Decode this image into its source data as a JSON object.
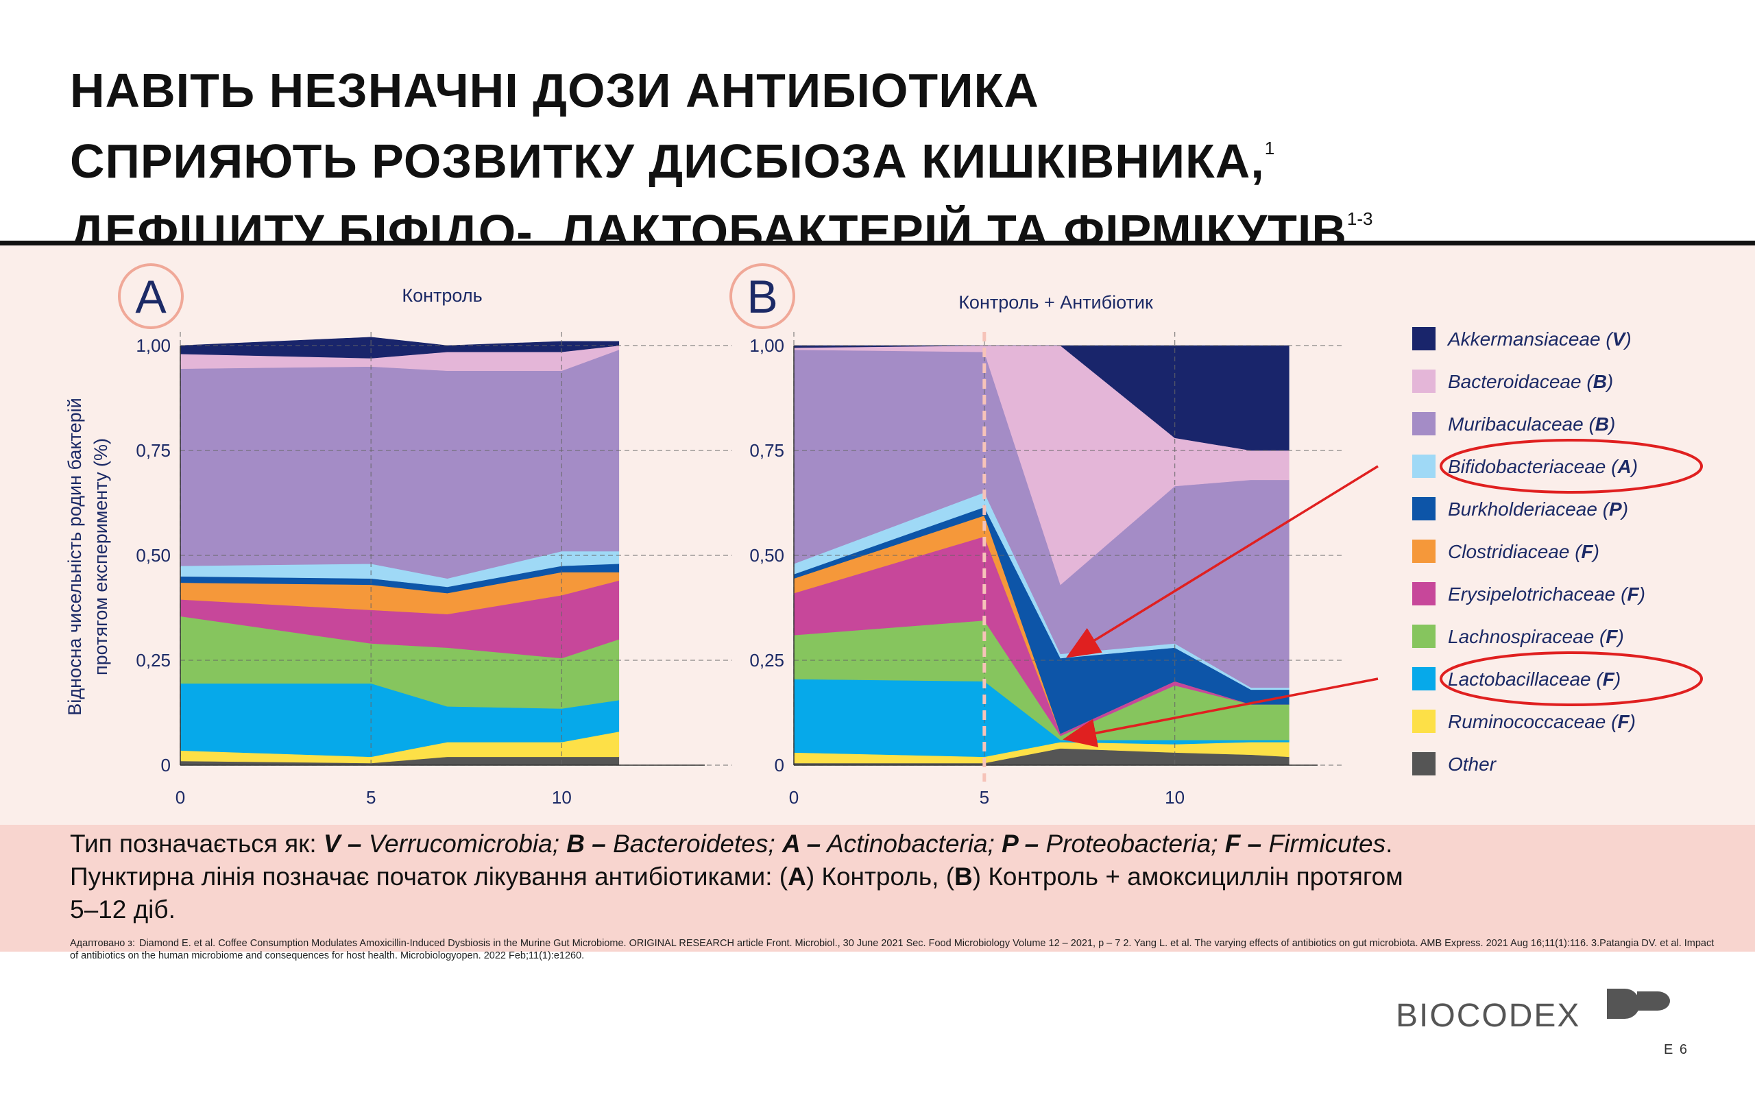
{
  "title": {
    "line1": "НАВІТЬ НЕЗНАЧНІ ДОЗИ АНТИБІОТИКА",
    "line2": "СПРИЯЮТЬ РОЗВИТКУ ДИСБІОЗА КИШКІВНИКА,",
    "line2_sup": "1",
    "line3": "ДЕФІЦИТУ БІФІДО-, ЛАКТОБАКТЕРІЙ ТА ФІРМІКУТІВ",
    "line3_sup": "1-3"
  },
  "ylabel_line1": "Відносна чисельність родин бактерій",
  "ylabel_line2": "протягом експерименту (%)",
  "colors": {
    "accent_circle": "#f0a898",
    "annotation": "#e02020",
    "panel_bg": "#fbeeea",
    "caption_bg": "#f8d5cf"
  },
  "chart_data": [
    {
      "type": "area",
      "stacked": true,
      "panel_label": "A",
      "title": "Контроль",
      "x": [
        0,
        5,
        7,
        10,
        11.5
      ],
      "xticks": [
        "0",
        "5",
        "10"
      ],
      "yticks": [
        "0",
        "0,25",
        "0,50",
        "0,75",
        "1,00"
      ],
      "ylim": [
        0,
        1
      ],
      "grid": true,
      "series": [
        {
          "name": "Other",
          "color": "#555555",
          "values": [
            0.01,
            0.005,
            0.02,
            0.02,
            0.02
          ]
        },
        {
          "name": "Ruminococcaceae",
          "color": "#fde047",
          "values": [
            0.025,
            0.015,
            0.035,
            0.035,
            0.06
          ]
        },
        {
          "name": "Lactobacillaceae",
          "color": "#06a9ea",
          "values": [
            0.16,
            0.175,
            0.085,
            0.08,
            0.075
          ]
        },
        {
          "name": "Lachnospiraceae",
          "color": "#86c55e",
          "values": [
            0.16,
            0.095,
            0.14,
            0.12,
            0.145
          ]
        },
        {
          "name": "Erysipelotrichaceae",
          "color": "#c7479a",
          "values": [
            0.04,
            0.08,
            0.08,
            0.15,
            0.14
          ]
        },
        {
          "name": "Clostridiaceae",
          "color": "#f5983a",
          "values": [
            0.04,
            0.06,
            0.05,
            0.055,
            0.02
          ]
        },
        {
          "name": "Burkholderiaceae",
          "color": "#0d55a8",
          "values": [
            0.015,
            0.015,
            0.015,
            0.015,
            0.02
          ]
        },
        {
          "name": "Bifidobacteriaceae",
          "color": "#9fd9f6",
          "values": [
            0.025,
            0.035,
            0.02,
            0.035,
            0.03
          ]
        },
        {
          "name": "Muribaculaceae",
          "color": "#a48cc6",
          "values": [
            0.47,
            0.47,
            0.495,
            0.43,
            0.48
          ]
        },
        {
          "name": "Bacteroidaceae",
          "color": "#e4b6d8",
          "values": [
            0.035,
            0.02,
            0.045,
            0.045,
            0.01
          ]
        },
        {
          "name": "Akkermansiaceae",
          "color": "#19256b",
          "values": [
            0.02,
            0.05,
            0.015,
            0.025,
            0.01
          ]
        }
      ]
    },
    {
      "type": "area",
      "stacked": true,
      "panel_label": "B",
      "title": "Контроль + Антибіотик",
      "x": [
        0,
        5,
        7,
        10,
        12,
        13
      ],
      "xticks": [
        "0",
        "5",
        "10"
      ],
      "yticks": [
        "0",
        "0,25",
        "0,50",
        "0,75",
        "1,00"
      ],
      "ylim": [
        0,
        1
      ],
      "grid": true,
      "treatment_start_x": 5,
      "series": [
        {
          "name": "Other",
          "color": "#555555",
          "values": [
            0.005,
            0.005,
            0.04,
            0.03,
            0.025,
            0.02
          ]
        },
        {
          "name": "Ruminococcaceae",
          "color": "#fde047",
          "values": [
            0.025,
            0.015,
            0.015,
            0.02,
            0.03,
            0.035
          ]
        },
        {
          "name": "Lactobacillaceae",
          "color": "#06a9ea",
          "values": [
            0.175,
            0.18,
            0.005,
            0.01,
            0.005,
            0.005
          ]
        },
        {
          "name": "Lachnospiraceae",
          "color": "#86c55e",
          "values": [
            0.105,
            0.145,
            0.01,
            0.13,
            0.085,
            0.085
          ]
        },
        {
          "name": "Erysipelotrichaceae",
          "color": "#c7479a",
          "values": [
            0.1,
            0.2,
            0.005,
            0.01,
            0.0,
            0.0
          ]
        },
        {
          "name": "Clostridiaceae",
          "color": "#f5983a",
          "values": [
            0.035,
            0.05,
            0.0,
            0.0,
            0.0,
            0.0
          ]
        },
        {
          "name": "Burkholderiaceae",
          "color": "#0d55a8",
          "values": [
            0.01,
            0.02,
            0.18,
            0.08,
            0.035,
            0.035
          ]
        },
        {
          "name": "Bifidobacteriaceae",
          "color": "#9fd9f6",
          "values": [
            0.025,
            0.035,
            0.01,
            0.01,
            0.005,
            0.005
          ]
        },
        {
          "name": "Muribaculaceae",
          "color": "#a48cc6",
          "values": [
            0.51,
            0.335,
            0.165,
            0.375,
            0.495,
            0.495
          ]
        },
        {
          "name": "Bacteroidaceae",
          "color": "#e4b6d8",
          "values": [
            0.005,
            0.015,
            0.57,
            0.115,
            0.07,
            0.07
          ]
        },
        {
          "name": "Akkermansiaceae",
          "color": "#19256b",
          "values": [
            0.005,
            0.0,
            0.0,
            0.22,
            0.25,
            0.25
          ]
        }
      ]
    }
  ],
  "legend": [
    {
      "name": "Akkermansiaceae",
      "suffix": " (",
      "phylum": "V",
      "close": ")",
      "color": "#19256b"
    },
    {
      "name": "Bacteroidaceae",
      "suffix": " (",
      "phylum": "B",
      "close": ")",
      "color": "#e4b6d8"
    },
    {
      "name": "Muribaculaceae",
      "suffix": " (",
      "phylum": "B",
      "close": ")",
      "color": "#a48cc6"
    },
    {
      "name": "Bifidobacteriaceae",
      "suffix": " (",
      "phylum": "A",
      "close": ")",
      "color": "#9fd9f6",
      "circled": true
    },
    {
      "name": "Burkholderiaceae",
      "suffix": " (",
      "phylum": "P",
      "close": ")",
      "color": "#0d55a8"
    },
    {
      "name": "Clostridiaceae",
      "suffix": " (",
      "phylum": "F",
      "close": ")",
      "color": "#f5983a"
    },
    {
      "name": "Erysipelotrichaceae",
      "suffix": " (",
      "phylum": "F",
      "close": ")",
      "color": "#c7479a"
    },
    {
      "name": "Lachnospiraceae",
      "suffix": " (",
      "phylum": "F",
      "close": ")",
      "color": "#86c55e"
    },
    {
      "name": "Lactobacillaceae",
      "suffix": " (",
      "phylum": "F",
      "close": ")",
      "color": "#06a9ea",
      "circled": true
    },
    {
      "name": "Ruminococcaceae",
      "suffix": " (",
      "phylum": "F",
      "close": ")",
      "color": "#fde047"
    },
    {
      "name": "Other",
      "suffix": "",
      "phylum": "",
      "close": "",
      "color": "#555555"
    }
  ],
  "caption": {
    "prefix": "Тип позначається як: ",
    "v_key": "V –",
    "v_name": " Verrucomicrobia; ",
    "b_key": "B –",
    "b_name": " Bacteroidetes; ",
    "a_key": "A –",
    "a_name": " Actinobacteria; ",
    "p_key": "P –",
    "p_name": " Proteobacteria; ",
    "f_key": "F –",
    "f_name": " Firmicutes",
    "end": ".",
    "line2_a": "Пунктирна лінія позначає початок лікування антибіотиками: (",
    "line2_A": "A",
    "line2_b": ") Контроль, (",
    "line2_B": "B",
    "line2_c": ") Контроль + амоксициллін протягом",
    "line3": "5–12 діб."
  },
  "references": {
    "label": "Адаптовано з:",
    "text": "Diamond E. et al. Coffee Consumption Modulates Amoxicillin-Induced Dysbiosis in the Murine Gut Microbiome. ORIGINAL RESEARCH article Front. Microbiol., 30 June 2021 Sec. Food Microbiology Volume 12 – 2021, p – 7 2. Yang L. et al. The varying effects of antibiotics on gut microbiota. AMB Express. 2021 Aug 16;11(1):116. 3.Patangia DV. et al. Impact of antibiotics on the human microbiome and consequences for host health. Microbiologyopen. 2022 Feb;11(1):e1260."
  },
  "brand": "BIOCODEX",
  "page_number": "E 6"
}
